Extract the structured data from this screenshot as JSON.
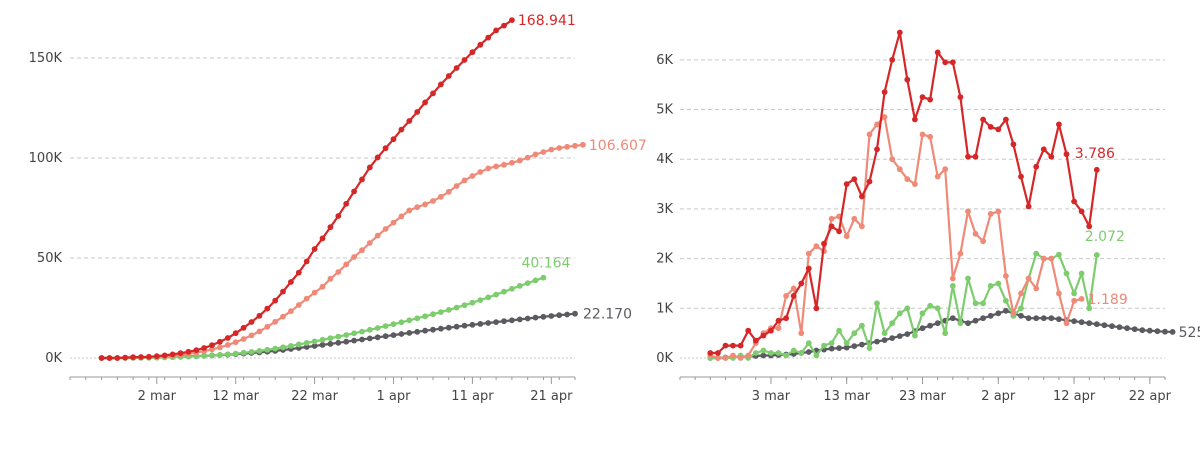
{
  "colors": {
    "red": "#d62728",
    "salmon": "#f08a78",
    "green": "#7dcc6e",
    "gray": "#5a5a60",
    "grid": "#c9c9c9",
    "axis": "#999999"
  },
  "chart_data": [
    {
      "type": "line",
      "x_start": "2020-02-24",
      "x_ticks": [
        {
          "label": "2 mar",
          "date": "2020-03-02"
        },
        {
          "label": "12 mar",
          "date": "2020-03-12"
        },
        {
          "label": "22 mar",
          "date": "2020-03-22"
        },
        {
          "label": "1 apr",
          "date": "2020-04-01"
        },
        {
          "label": "11 apr",
          "date": "2020-04-11"
        },
        {
          "label": "21 apr",
          "date": "2020-04-21"
        }
      ],
      "xlim": [
        "2020-02-20",
        "2020-04-24"
      ],
      "y_ticks": [
        {
          "label": "0K",
          "value": 0
        },
        {
          "label": "50K",
          "value": 50000
        },
        {
          "label": "100K",
          "value": 100000
        },
        {
          "label": "150K",
          "value": 150000
        }
      ],
      "ylim": [
        0,
        170000
      ],
      "grid": true,
      "series": [
        {
          "color_key": "gray",
          "end_label": "22.170",
          "values": [
            0,
            0,
            0,
            100,
            150,
            200,
            250,
            350,
            450,
            550,
            650,
            800,
            950,
            1100,
            1300,
            1500,
            1700,
            1950,
            2200,
            2500,
            2800,
            3150,
            3550,
            4000,
            4500,
            5000,
            5500,
            6000,
            6550,
            7050,
            7600,
            8150,
            8700,
            9250,
            9800,
            10350,
            10900,
            11450,
            12000,
            12550,
            13100,
            13650,
            14150,
            14650,
            15150,
            15650,
            16150,
            16600,
            17050,
            17500,
            17950,
            18400,
            18850,
            19300,
            19750,
            20200,
            20600,
            21000,
            21400,
            21750,
            22170
          ]
        },
        {
          "color_key": "green",
          "end_label": "40.164",
          "values": [
            0,
            0,
            0,
            0,
            0,
            50,
            100,
            150,
            250,
            400,
            550,
            700,
            850,
            1050,
            1300,
            1550,
            1850,
            2200,
            2600,
            3050,
            3550,
            4100,
            4700,
            5350,
            6050,
            6800,
            7550,
            8300,
            9100,
            9900,
            10700,
            11500,
            12350,
            13200,
            14100,
            15000,
            15950,
            16900,
            17850,
            18850,
            19850,
            20850,
            21900,
            22950,
            24050,
            25200,
            26400,
            27650,
            28950,
            30300,
            31700,
            33150,
            34600,
            36050,
            37450,
            38800,
            40164
          ]
        },
        {
          "color_key": "salmon",
          "end_label": "106.607",
          "values": [
            0,
            0,
            0,
            100,
            200,
            300,
            500,
            700,
            900,
            1200,
            1600,
            2100,
            2700,
            3400,
            4300,
            5300,
            6500,
            7900,
            9500,
            11300,
            13300,
            15600,
            18100,
            20700,
            23400,
            26500,
            29700,
            32700,
            35600,
            39600,
            43000,
            46800,
            50500,
            53900,
            57500,
            61200,
            64500,
            67700,
            70800,
            73800,
            75400,
            76800,
            78500,
            80600,
            83100,
            86000,
            88800,
            91000,
            93000,
            94800,
            95800,
            96600,
            97600,
            98700,
            100200,
            101800,
            103000,
            104200,
            105000,
            105600,
            106100,
            106607
          ]
        },
        {
          "color_key": "red",
          "end_label": "168.941",
          "values": [
            0,
            0,
            0,
            200,
            400,
            500,
            600,
            900,
            1300,
            1800,
            2400,
            3100,
            3900,
            5000,
            6400,
            8100,
            10000,
            12400,
            15100,
            18000,
            21100,
            24700,
            28700,
            33200,
            38000,
            42700,
            48300,
            54500,
            59800,
            65400,
            71000,
            77100,
            83300,
            89300,
            95300,
            100300,
            104900,
            109400,
            114200,
            118500,
            123000,
            127800,
            132300,
            136800,
            141000,
            145000,
            149000,
            152900,
            156600,
            160200,
            163800,
            166200,
            168941
          ]
        }
      ]
    },
    {
      "type": "line",
      "x_start": "2020-02-24",
      "x_ticks": [
        {
          "label": "3 mar",
          "date": "2020-03-03"
        },
        {
          "label": "13 mar",
          "date": "2020-03-13"
        },
        {
          "label": "23 mar",
          "date": "2020-03-23"
        },
        {
          "label": "2 apr",
          "date": "2020-04-02"
        },
        {
          "label": "12 apr",
          "date": "2020-04-12"
        },
        {
          "label": "22 apr",
          "date": "2020-04-22"
        }
      ],
      "xlim": [
        "2020-02-20",
        "2020-04-24"
      ],
      "y_ticks": [
        {
          "label": "0K",
          "value": 0
        },
        {
          "label": "1K",
          "value": 1000
        },
        {
          "label": "2K",
          "value": 2000
        },
        {
          "label": "3K",
          "value": 3000
        },
        {
          "label": "4K",
          "value": 4000
        },
        {
          "label": "5K",
          "value": 5000
        },
        {
          "label": "6K",
          "value": 6000
        }
      ],
      "ylim": [
        0,
        6600
      ],
      "grid": true,
      "series": [
        {
          "color_key": "gray",
          "end_label": "525",
          "values": [
            0,
            0,
            10,
            20,
            30,
            30,
            40,
            50,
            50,
            60,
            70,
            80,
            100,
            120,
            150,
            170,
            190,
            200,
            210,
            240,
            270,
            300,
            330,
            360,
            400,
            440,
            480,
            540,
            600,
            650,
            700,
            750,
            800,
            750,
            700,
            750,
            800,
            850,
            900,
            950,
            900,
            850,
            800,
            800,
            800,
            800,
            780,
            760,
            740,
            720,
            700,
            680,
            660,
            640,
            620,
            600,
            580,
            560,
            550,
            540,
            530,
            525
          ]
        },
        {
          "color_key": "green",
          "end_label": "2.072",
          "values": [
            0,
            0,
            0,
            0,
            50,
            0,
            100,
            150,
            100,
            100,
            50,
            150,
            100,
            300,
            50,
            250,
            300,
            550,
            300,
            500,
            650,
            200,
            1100,
            500,
            700,
            900,
            1000,
            450,
            900,
            1050,
            1000,
            500,
            1450,
            700,
            1600,
            1100,
            1100,
            1450,
            1500,
            1150,
            850,
            1000,
            1600,
            2100,
            2000,
            2000,
            2080,
            1700,
            1300,
            1700,
            1000,
            2072
          ]
        },
        {
          "color_key": "salmon",
          "end_label": "1.189",
          "values": [
            50,
            0,
            0,
            50,
            0,
            50,
            300,
            500,
            600,
            600,
            1250,
            1400,
            500,
            2100,
            2250,
            2150,
            2800,
            2850,
            2450,
            2800,
            2650,
            4500,
            4700,
            4850,
            4000,
            3800,
            3600,
            3500,
            4500,
            4450,
            3650,
            3800,
            1600,
            2100,
            2950,
            2500,
            2350,
            2900,
            2950,
            1650,
            900,
            1300,
            1600,
            1400,
            2000,
            2000,
            1300,
            700,
            1150,
            1189
          ]
        },
        {
          "color_key": "red",
          "end_label": "3.786",
          "values": [
            100,
            100,
            250,
            250,
            250,
            550,
            350,
            450,
            550,
            750,
            800,
            1250,
            1500,
            1800,
            1000,
            2300,
            2650,
            2550,
            3500,
            3600,
            3250,
            3550,
            4200,
            5350,
            6000,
            6550,
            5600,
            4800,
            5250,
            5200,
            6150,
            5950,
            5950,
            5250,
            4050,
            4050,
            4800,
            4650,
            4600,
            4800,
            4300,
            3650,
            3050,
            3850,
            4200,
            4050,
            4700,
            4100,
            3150,
            2950,
            2650,
            3786
          ]
        }
      ]
    }
  ]
}
